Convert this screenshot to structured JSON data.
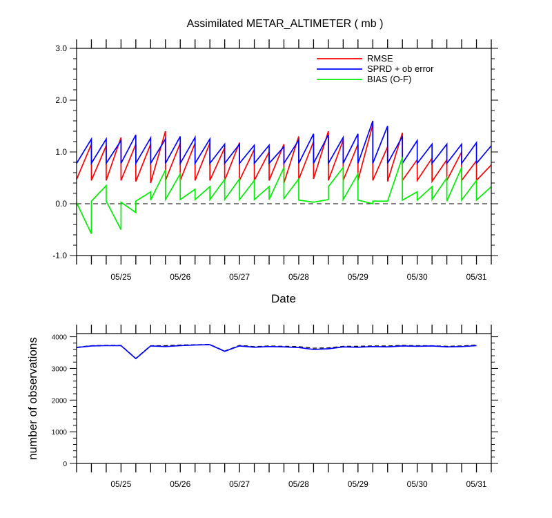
{
  "chart_data": [
    {
      "type": "line",
      "title": "Assimilated METAR_ALTIMETER ( mb )",
      "xlabel": "Date",
      "ylabel": "",
      "ylim": [
        -1.0,
        3.0
      ],
      "xlim": [
        "05/24 06:00",
        "05/31 06:00"
      ],
      "yticks": [
        "-1.0",
        "0.0",
        "1.0",
        "2.0",
        "3.0"
      ],
      "xticks": [
        "05/25",
        "05/26",
        "05/27",
        "05/28",
        "05/29",
        "05/30",
        "05/31"
      ],
      "grid": false,
      "legend_position": "top-right",
      "zero_reference_line": "dashed",
      "series": [
        {
          "name": "RMSE",
          "color": "#ff0000",
          "points": [
            [
              "05/24 06:00",
              0.47
            ],
            [
              "05/24 12:00",
              1.15
            ],
            [
              "05/24 12:00",
              0.45
            ],
            [
              "05/24 18:00",
              1.12
            ],
            [
              "05/24 18:00",
              0.45
            ],
            [
              "05/25 00:00",
              1.28
            ],
            [
              "05/25 00:00",
              0.45
            ],
            [
              "05/25 06:00",
              1.15
            ],
            [
              "05/25 06:00",
              0.43
            ],
            [
              "05/25 12:00",
              1.15
            ],
            [
              "05/25 12:00",
              0.4
            ],
            [
              "05/25 18:00",
              1.4
            ],
            [
              "05/25 18:00",
              0.45
            ],
            [
              "05/26 00:00",
              1.17
            ],
            [
              "05/26 00:00",
              0.45
            ],
            [
              "05/26 06:00",
              1.17
            ],
            [
              "05/26 06:00",
              0.45
            ],
            [
              "05/26 12:00",
              1.17
            ],
            [
              "05/26 12:00",
              0.45
            ],
            [
              "05/26 18:00",
              1.08
            ],
            [
              "05/26 18:00",
              0.45
            ],
            [
              "05/27 00:00",
              1.18
            ],
            [
              "05/27 00:00",
              0.45
            ],
            [
              "05/27 06:00",
              1.05
            ],
            [
              "05/27 06:00",
              0.45
            ],
            [
              "05/27 12:00",
              1.0
            ],
            [
              "05/27 12:00",
              0.45
            ],
            [
              "05/27 18:00",
              1.15
            ],
            [
              "05/27 18:00",
              0.4
            ],
            [
              "05/28 00:00",
              1.3
            ],
            [
              "05/28 00:00",
              0.47
            ],
            [
              "05/28 06:00",
              1.2
            ],
            [
              "05/28 06:00",
              0.48
            ],
            [
              "05/28 12:00",
              1.4
            ],
            [
              "05/28 12:00",
              0.45
            ],
            [
              "05/28 18:00",
              1.23
            ],
            [
              "05/28 18:00",
              0.45
            ],
            [
              "05/29 00:00",
              1.15
            ],
            [
              "05/29 00:00",
              0.45
            ],
            [
              "05/29 06:00",
              1.53
            ],
            [
              "05/29 06:00",
              0.45
            ],
            [
              "05/29 12:00",
              1.1
            ],
            [
              "05/29 12:00",
              0.43
            ],
            [
              "05/29 18:00",
              1.37
            ],
            [
              "05/29 18:00",
              0.45
            ],
            [
              "05/30 00:00",
              0.85
            ],
            [
              "05/30 00:00",
              0.45
            ],
            [
              "05/30 06:00",
              0.88
            ],
            [
              "05/30 06:00",
              0.43
            ],
            [
              "05/30 12:00",
              0.85
            ],
            [
              "05/30 12:00",
              0.45
            ],
            [
              "05/30 18:00",
              1.0
            ],
            [
              "05/30 18:00",
              0.45
            ],
            [
              "05/31 00:00",
              0.83
            ],
            [
              "05/31 00:00",
              0.45
            ],
            [
              "05/31 06:00",
              0.75
            ]
          ]
        },
        {
          "name": "SPRD + ob error",
          "color": "#0000ff",
          "points": [
            [
              "05/24 06:00",
              0.78
            ],
            [
              "05/24 12:00",
              1.25
            ],
            [
              "05/24 12:00",
              0.78
            ],
            [
              "05/24 18:00",
              1.25
            ],
            [
              "05/24 18:00",
              0.78
            ],
            [
              "05/25 00:00",
              1.22
            ],
            [
              "05/25 00:00",
              0.78
            ],
            [
              "05/25 06:00",
              1.33
            ],
            [
              "05/25 06:00",
              0.78
            ],
            [
              "05/25 12:00",
              1.27
            ],
            [
              "05/25 12:00",
              0.78
            ],
            [
              "05/25 18:00",
              1.25
            ],
            [
              "05/25 18:00",
              0.78
            ],
            [
              "05/26 00:00",
              1.3
            ],
            [
              "05/26 00:00",
              0.78
            ],
            [
              "05/26 06:00",
              1.28
            ],
            [
              "05/26 06:00",
              0.78
            ],
            [
              "05/26 12:00",
              1.25
            ],
            [
              "05/26 12:00",
              0.78
            ],
            [
              "05/26 18:00",
              1.15
            ],
            [
              "05/26 18:00",
              0.78
            ],
            [
              "05/27 00:00",
              1.15
            ],
            [
              "05/27 00:00",
              0.78
            ],
            [
              "05/27 06:00",
              1.13
            ],
            [
              "05/27 06:00",
              0.78
            ],
            [
              "05/27 12:00",
              1.13
            ],
            [
              "05/27 12:00",
              0.78
            ],
            [
              "05/27 18:00",
              1.1
            ],
            [
              "05/27 18:00",
              0.78
            ],
            [
              "05/28 00:00",
              1.23
            ],
            [
              "05/28 00:00",
              0.78
            ],
            [
              "05/28 06:00",
              1.35
            ],
            [
              "05/28 06:00",
              0.78
            ],
            [
              "05/28 12:00",
              1.33
            ],
            [
              "05/28 12:00",
              0.78
            ],
            [
              "05/28 18:00",
              1.28
            ],
            [
              "05/28 18:00",
              0.78
            ],
            [
              "05/29 00:00",
              1.35
            ],
            [
              "05/29 00:00",
              0.78
            ],
            [
              "05/29 06:00",
              1.6
            ],
            [
              "05/29 06:00",
              0.78
            ],
            [
              "05/29 12:00",
              1.5
            ],
            [
              "05/29 12:00",
              0.78
            ],
            [
              "05/29 18:00",
              1.3
            ],
            [
              "05/29 18:00",
              0.78
            ],
            [
              "05/30 00:00",
              1.22
            ],
            [
              "05/30 00:00",
              0.78
            ],
            [
              "05/30 06:00",
              1.15
            ],
            [
              "05/30 06:00",
              0.78
            ],
            [
              "05/30 12:00",
              1.15
            ],
            [
              "05/30 12:00",
              0.78
            ],
            [
              "05/30 18:00",
              1.15
            ],
            [
              "05/30 18:00",
              0.78
            ],
            [
              "05/31 00:00",
              1.18
            ],
            [
              "05/31 00:00",
              0.78
            ],
            [
              "05/31 06:00",
              1.12
            ]
          ]
        },
        {
          "name": "BIAS (O-F)",
          "color": "#00ee00",
          "points": [
            [
              "05/24 06:00",
              0.02
            ],
            [
              "05/24 12:00",
              -0.58
            ],
            [
              "05/24 12:00",
              0.05
            ],
            [
              "05/24 18:00",
              0.35
            ],
            [
              "05/24 18:00",
              0.05
            ],
            [
              "05/25 00:00",
              -0.5
            ],
            [
              "05/25 00:00",
              0.03
            ],
            [
              "05/25 06:00",
              -0.17
            ],
            [
              "05/25 06:00",
              0.05
            ],
            [
              "05/25 12:00",
              0.23
            ],
            [
              "05/25 12:00",
              0.07
            ],
            [
              "05/25 18:00",
              0.65
            ],
            [
              "05/25 18:00",
              0.08
            ],
            [
              "05/26 00:00",
              0.58
            ],
            [
              "05/26 00:00",
              0.08
            ],
            [
              "05/26 06:00",
              0.28
            ],
            [
              "05/26 06:00",
              0.08
            ],
            [
              "05/26 12:00",
              0.33
            ],
            [
              "05/26 12:00",
              0.08
            ],
            [
              "05/26 18:00",
              0.47
            ],
            [
              "05/26 18:00",
              0.08
            ],
            [
              "05/27 00:00",
              0.48
            ],
            [
              "05/27 00:00",
              0.08
            ],
            [
              "05/27 06:00",
              0.45
            ],
            [
              "05/27 06:00",
              0.08
            ],
            [
              "05/27 12:00",
              0.33
            ],
            [
              "05/27 12:00",
              0.08
            ],
            [
              "05/27 18:00",
              0.7
            ],
            [
              "05/27 18:00",
              0.1
            ],
            [
              "05/28 00:00",
              0.48
            ],
            [
              "05/28 00:00",
              0.07
            ],
            [
              "05/28 06:00",
              0.03
            ],
            [
              "05/28 12:00",
              0.08
            ],
            [
              "05/28 12:00",
              0.33
            ],
            [
              "05/28 18:00",
              0.7
            ],
            [
              "05/28 18:00",
              0.08
            ],
            [
              "05/29 00:00",
              0.58
            ],
            [
              "05/29 00:00",
              0.07
            ],
            [
              "05/29 06:00",
              0.0
            ],
            [
              "05/29 06:00",
              0.05
            ],
            [
              "05/29 12:00",
              0.05
            ],
            [
              "05/29 18:00",
              0.9
            ],
            [
              "05/29 18:00",
              0.07
            ],
            [
              "05/30 00:00",
              0.23
            ],
            [
              "05/30 00:00",
              0.07
            ],
            [
              "05/30 06:00",
              0.33
            ],
            [
              "05/30 06:00",
              0.08
            ],
            [
              "05/30 12:00",
              0.5
            ],
            [
              "05/30 12:00",
              0.05
            ],
            [
              "05/30 18:00",
              0.7
            ],
            [
              "05/30 18:00",
              0.07
            ],
            [
              "05/31 00:00",
              0.45
            ],
            [
              "05/31 00:00",
              0.07
            ],
            [
              "05/31 06:00",
              0.33
            ]
          ]
        }
      ]
    },
    {
      "type": "line",
      "title": "",
      "xlabel": "",
      "ylabel": "number of observations",
      "ylim": [
        0,
        4100
      ],
      "xlim": [
        "05/24 06:00",
        "05/31 06:00"
      ],
      "yticks": [
        "0",
        "1000",
        "2000",
        "3000",
        "4000"
      ],
      "xticks": [
        "05/25",
        "05/26",
        "05/27",
        "05/28",
        "05/29",
        "05/30",
        "05/31"
      ],
      "grid": false,
      "series": [
        {
          "color": "#000000",
          "style": "dashed",
          "points": [
            [
              "05/24 06:00",
              3670
            ],
            [
              "05/24 12:00",
              3720
            ],
            [
              "05/24 18:00",
              3730
            ],
            [
              "05/25 00:00",
              3730
            ],
            [
              "05/25 06:00",
              3320
            ],
            [
              "05/25 12:00",
              3720
            ],
            [
              "05/25 18:00",
              3720
            ],
            [
              "05/26 00:00",
              3740
            ],
            [
              "05/26 06:00",
              3750
            ],
            [
              "05/26 12:00",
              3760
            ],
            [
              "05/26 18:00",
              3550
            ],
            [
              "05/27 00:00",
              3730
            ],
            [
              "05/27 06:00",
              3690
            ],
            [
              "05/27 12:00",
              3710
            ],
            [
              "05/27 18:00",
              3700
            ],
            [
              "05/28 00:00",
              3690
            ],
            [
              "05/28 06:00",
              3640
            ],
            [
              "05/28 12:00",
              3650
            ],
            [
              "05/28 18:00",
              3700
            ],
            [
              "05/29 00:00",
              3700
            ],
            [
              "05/29 06:00",
              3710
            ],
            [
              "05/29 12:00",
              3710
            ],
            [
              "05/29 18:00",
              3730
            ],
            [
              "05/30 00:00",
              3720
            ],
            [
              "05/30 06:00",
              3720
            ],
            [
              "05/30 12:00",
              3700
            ],
            [
              "05/30 18:00",
              3710
            ],
            [
              "05/31 00:00",
              3740
            ]
          ]
        },
        {
          "color": "#0000ff",
          "style": "solid",
          "points": [
            [
              "05/24 06:00",
              3660
            ],
            [
              "05/24 12:00",
              3710
            ],
            [
              "05/24 18:00",
              3720
            ],
            [
              "05/25 00:00",
              3720
            ],
            [
              "05/25 06:00",
              3310
            ],
            [
              "05/25 12:00",
              3710
            ],
            [
              "05/25 18:00",
              3690
            ],
            [
              "05/26 00:00",
              3720
            ],
            [
              "05/26 06:00",
              3740
            ],
            [
              "05/26 12:00",
              3750
            ],
            [
              "05/26 18:00",
              3540
            ],
            [
              "05/27 00:00",
              3710
            ],
            [
              "05/27 06:00",
              3670
            ],
            [
              "05/27 12:00",
              3690
            ],
            [
              "05/27 18:00",
              3680
            ],
            [
              "05/28 00:00",
              3660
            ],
            [
              "05/28 06:00",
              3600
            ],
            [
              "05/28 12:00",
              3620
            ],
            [
              "05/28 18:00",
              3680
            ],
            [
              "05/29 00:00",
              3670
            ],
            [
              "05/29 06:00",
              3690
            ],
            [
              "05/29 12:00",
              3680
            ],
            [
              "05/29 18:00",
              3710
            ],
            [
              "05/30 00:00",
              3700
            ],
            [
              "05/30 06:00",
              3710
            ],
            [
              "05/30 12:00",
              3680
            ],
            [
              "05/30 18:00",
              3690
            ],
            [
              "05/31 00:00",
              3720
            ]
          ]
        }
      ]
    }
  ]
}
